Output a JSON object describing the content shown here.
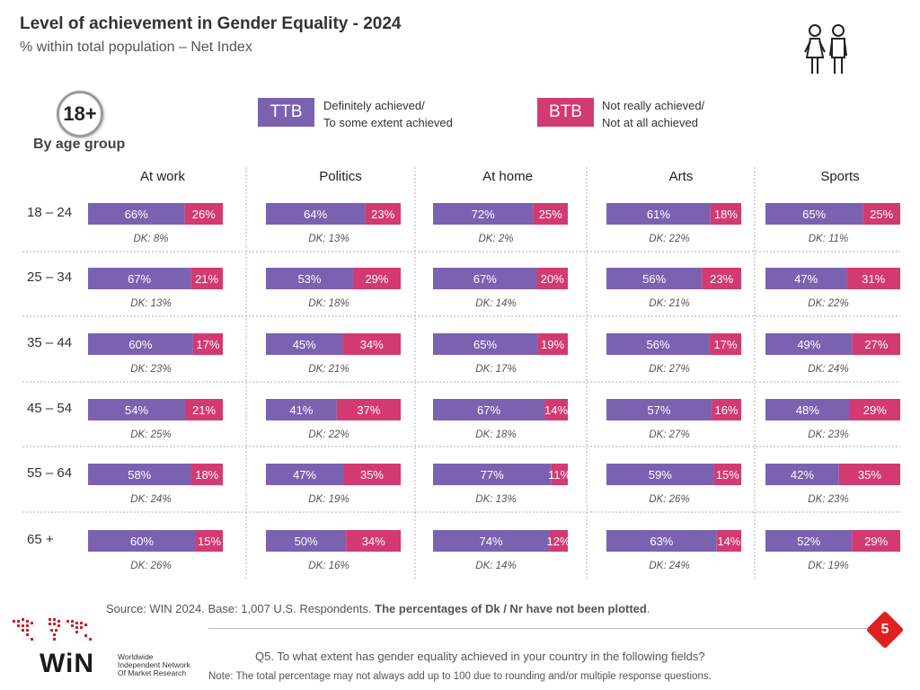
{
  "header": {
    "title": "Level of achievement in Gender Equality - 2024",
    "subtitle": "% within total population – Net Index"
  },
  "age_badge": "18+",
  "age_group_label": "By age group",
  "legend": {
    "ttb": {
      "label": "TTB",
      "line1": "Definitely achieved/",
      "line2": "To some extent achieved",
      "color": "#7b62b1"
    },
    "btb": {
      "label": "BTB",
      "line1": "Not really achieved/",
      "line2": "Not at all achieved",
      "color": "#d33a72"
    }
  },
  "chart_data": {
    "type": "bar",
    "orientation": "horizontal-stacked",
    "categories": [
      "At work",
      "Politics",
      "At home",
      "Arts",
      "Sports"
    ],
    "age_groups": [
      "18 – 24",
      "25 – 34",
      "35 – 44",
      "45 – 54",
      "55 – 64",
      "65 +"
    ],
    "series": [
      {
        "name": "TTB",
        "values": [
          [
            66,
            64,
            72,
            61,
            65
          ],
          [
            67,
            53,
            67,
            56,
            47
          ],
          [
            60,
            45,
            65,
            56,
            49
          ],
          [
            54,
            41,
            67,
            57,
            48
          ],
          [
            58,
            47,
            77,
            59,
            42
          ],
          [
            60,
            50,
            74,
            63,
            52
          ]
        ]
      },
      {
        "name": "BTB",
        "values": [
          [
            26,
            23,
            25,
            18,
            25
          ],
          [
            21,
            29,
            20,
            23,
            31
          ],
          [
            17,
            34,
            19,
            17,
            27
          ],
          [
            21,
            37,
            14,
            16,
            29
          ],
          [
            18,
            35,
            11,
            15,
            35
          ],
          [
            15,
            34,
            12,
            14,
            29
          ]
        ]
      }
    ],
    "dk": [
      [
        8,
        13,
        2,
        22,
        11
      ],
      [
        13,
        18,
        14,
        21,
        22
      ],
      [
        23,
        21,
        17,
        27,
        24
      ],
      [
        25,
        22,
        18,
        27,
        23
      ],
      [
        24,
        19,
        13,
        26,
        23
      ],
      [
        26,
        16,
        14,
        24,
        19
      ]
    ],
    "value_suffix": "%",
    "dk_prefix": "DK: "
  },
  "footer": {
    "source_text": "Source: WIN 2024. Base: 1,007 U.S. Respondents. ",
    "source_bold": "The percentages of Dk / Nr have not been plotted",
    "source_end": ".",
    "question": "Q5. To what extent has gender equality achieved in your country in the following fields?",
    "note": "Note: The total percentage may not always add up to 100 due to rounding and/or multiple response questions.",
    "page_number": "5"
  },
  "logo": {
    "word": "WiN",
    "tag_line1": "Worldwide",
    "tag_line2": "Independent Network",
    "tag_line3": "Of Market Research"
  }
}
